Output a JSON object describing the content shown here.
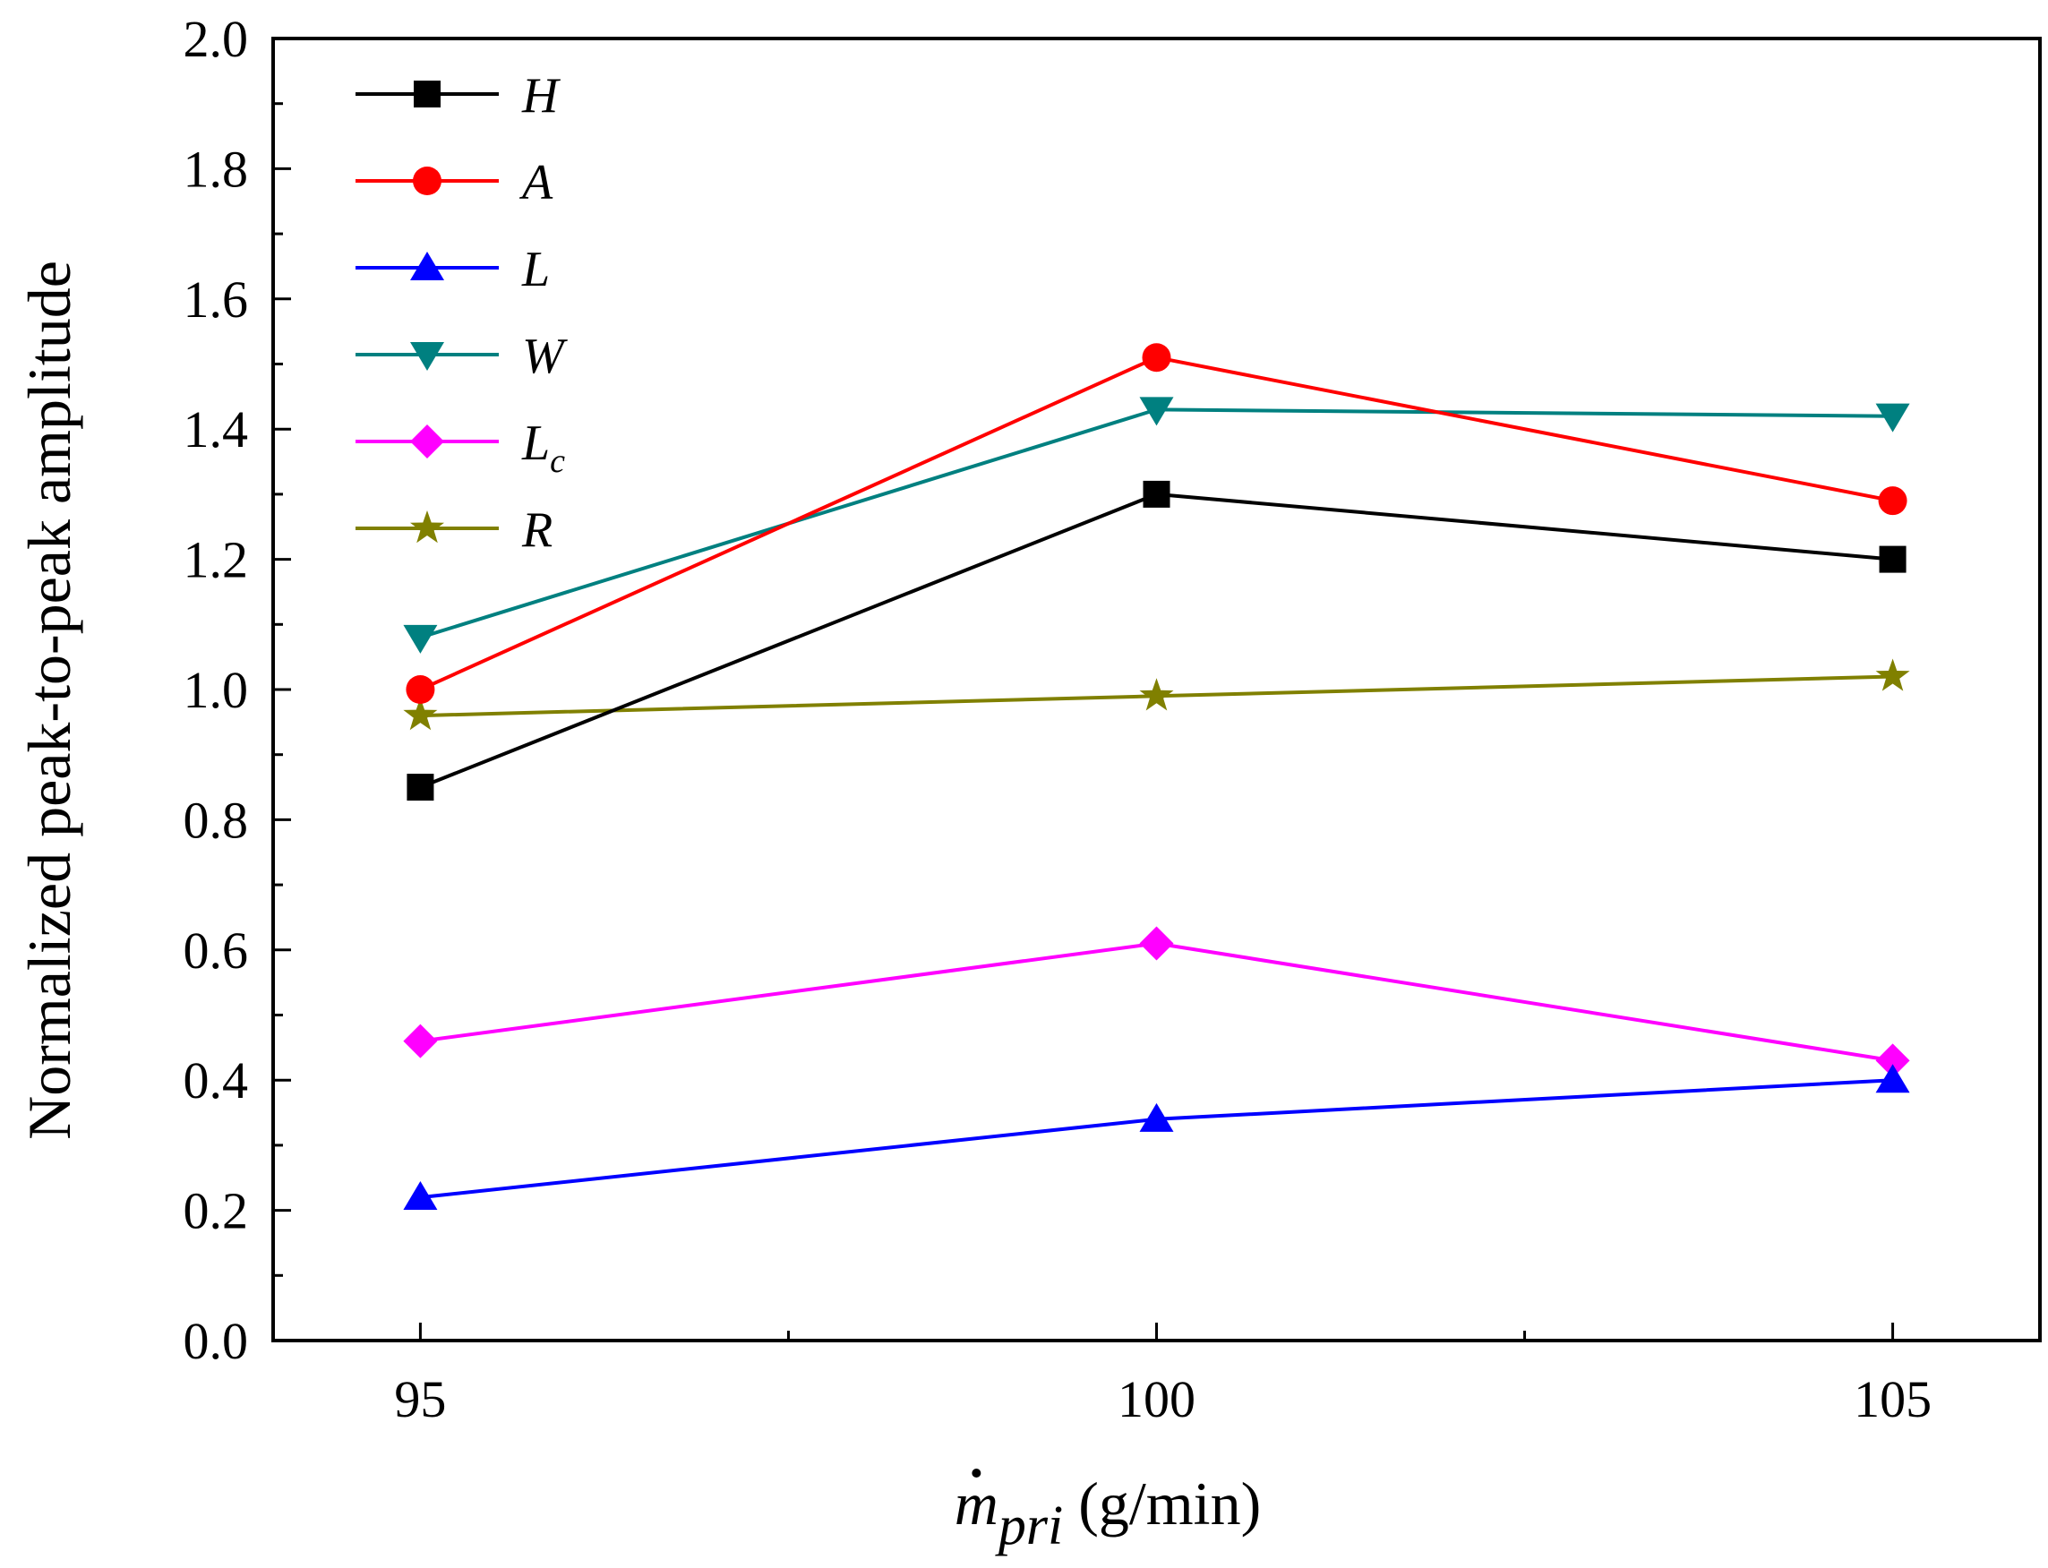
{
  "chart_data": {
    "type": "line",
    "title": "",
    "xlabel_main": "m",
    "xlabel_sub": "pri",
    "xlabel_unit": " (g/min)",
    "ylabel": "Normalized peak-to-peak amplitude",
    "x": [
      95,
      100,
      105
    ],
    "x_tick_labels": [
      "95",
      "100",
      "105"
    ],
    "xlim": [
      94,
      106
    ],
    "ylim": [
      0,
      2.0
    ],
    "y_ticks": [
      0.0,
      0.2,
      0.4,
      0.6,
      0.8,
      1.0,
      1.2,
      1.4,
      1.6,
      1.8,
      2.0
    ],
    "y_tick_labels": [
      "0.0",
      "0.2",
      "0.4",
      "0.6",
      "0.8",
      "1.0",
      "1.2",
      "1.4",
      "1.6",
      "1.8",
      "2.0"
    ],
    "grid": false,
    "legend_position": "top-left",
    "series": [
      {
        "name": "H",
        "subscript": "",
        "marker": "square",
        "color": "#000000",
        "values": [
          0.85,
          1.3,
          1.2
        ]
      },
      {
        "name": "A",
        "subscript": "",
        "marker": "circle",
        "color": "#ff0000",
        "values": [
          1.0,
          1.51,
          1.29
        ]
      },
      {
        "name": "L",
        "subscript": "",
        "marker": "triangle-up",
        "color": "#0000ff",
        "values": [
          0.22,
          0.34,
          0.4
        ]
      },
      {
        "name": "W",
        "subscript": "",
        "marker": "triangle-down",
        "color": "#008080",
        "values": [
          1.08,
          1.43,
          1.42
        ]
      },
      {
        "name": "L",
        "subscript": "c",
        "marker": "diamond",
        "color": "#ff00ff",
        "values": [
          0.46,
          0.61,
          0.43
        ]
      },
      {
        "name": "R",
        "subscript": "",
        "marker": "star",
        "color": "#808000",
        "values": [
          0.96,
          0.99,
          1.02
        ]
      }
    ]
  }
}
